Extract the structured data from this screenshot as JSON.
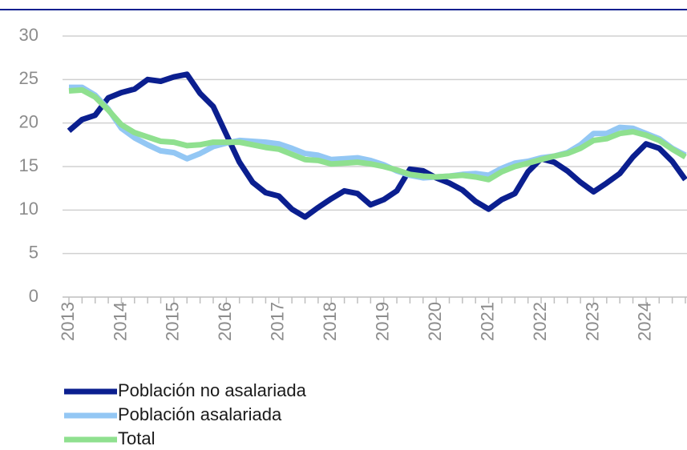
{
  "chart_data": {
    "type": "line",
    "categories": [
      "2013",
      null,
      null,
      null,
      "2014",
      null,
      null,
      null,
      "2015",
      null,
      null,
      null,
      "2016",
      null,
      null,
      null,
      "2017",
      null,
      null,
      null,
      "2018",
      null,
      null,
      null,
      "2019",
      null,
      null,
      null,
      "2020",
      null,
      null,
      null,
      "2021",
      null,
      null,
      null,
      "2022",
      null,
      null,
      null,
      "2023",
      null,
      null,
      null,
      "2024",
      null,
      null,
      null
    ],
    "series": [
      {
        "name": "Población no asalariada",
        "color": "#0b1f8f",
        "values": [
          19.1,
          20.4,
          20.9,
          22.9,
          23.5,
          23.9,
          25.0,
          24.8,
          25.3,
          25.6,
          23.4,
          21.9,
          18.7,
          15.5,
          13.2,
          12.0,
          11.6,
          10.1,
          9.2,
          10.3,
          11.3,
          12.2,
          11.9,
          10.6,
          11.2,
          12.2,
          14.7,
          14.5,
          13.7,
          13.1,
          12.3,
          11.0,
          10.1,
          11.2,
          11.9,
          14.4,
          15.9,
          15.5,
          14.5,
          13.2,
          12.1,
          13.1,
          14.2,
          16.1,
          17.6,
          17.1,
          15.6,
          13.5
        ]
      },
      {
        "name": "Población asalariada",
        "color": "#93c7f4",
        "values": [
          24.1,
          24.1,
          23.2,
          21.6,
          19.4,
          18.3,
          17.5,
          16.8,
          16.6,
          15.9,
          16.5,
          17.3,
          17.7,
          18.0,
          17.9,
          17.8,
          17.6,
          17.1,
          16.5,
          16.3,
          15.8,
          15.9,
          16.0,
          15.7,
          15.2,
          14.5,
          14.0,
          13.7,
          13.8,
          13.9,
          14.1,
          14.2,
          14.0,
          14.8,
          15.4,
          15.6,
          16.0,
          16.2,
          16.6,
          17.5,
          18.8,
          18.8,
          19.5,
          19.4,
          18.8,
          18.2,
          17.1,
          16.3
        ]
      },
      {
        "name": "Total",
        "color": "#8fe08f",
        "values": [
          23.7,
          23.8,
          23.0,
          21.5,
          19.8,
          18.9,
          18.4,
          17.9,
          17.8,
          17.4,
          17.5,
          17.8,
          17.8,
          17.8,
          17.5,
          17.2,
          17.0,
          16.4,
          15.8,
          15.7,
          15.3,
          15.4,
          15.5,
          15.3,
          15.0,
          14.6,
          14.1,
          13.9,
          13.8,
          13.9,
          14.0,
          13.8,
          13.5,
          14.4,
          15.0,
          15.4,
          15.8,
          16.2,
          16.5,
          17.1,
          18.0,
          18.2,
          18.8,
          19.0,
          18.6,
          18.0,
          17.0,
          16.1
        ]
      }
    ],
    "ylim": [
      0,
      30
    ],
    "yticks": [
      0,
      5,
      10,
      15,
      20,
      25,
      30
    ],
    "grid": true
  }
}
